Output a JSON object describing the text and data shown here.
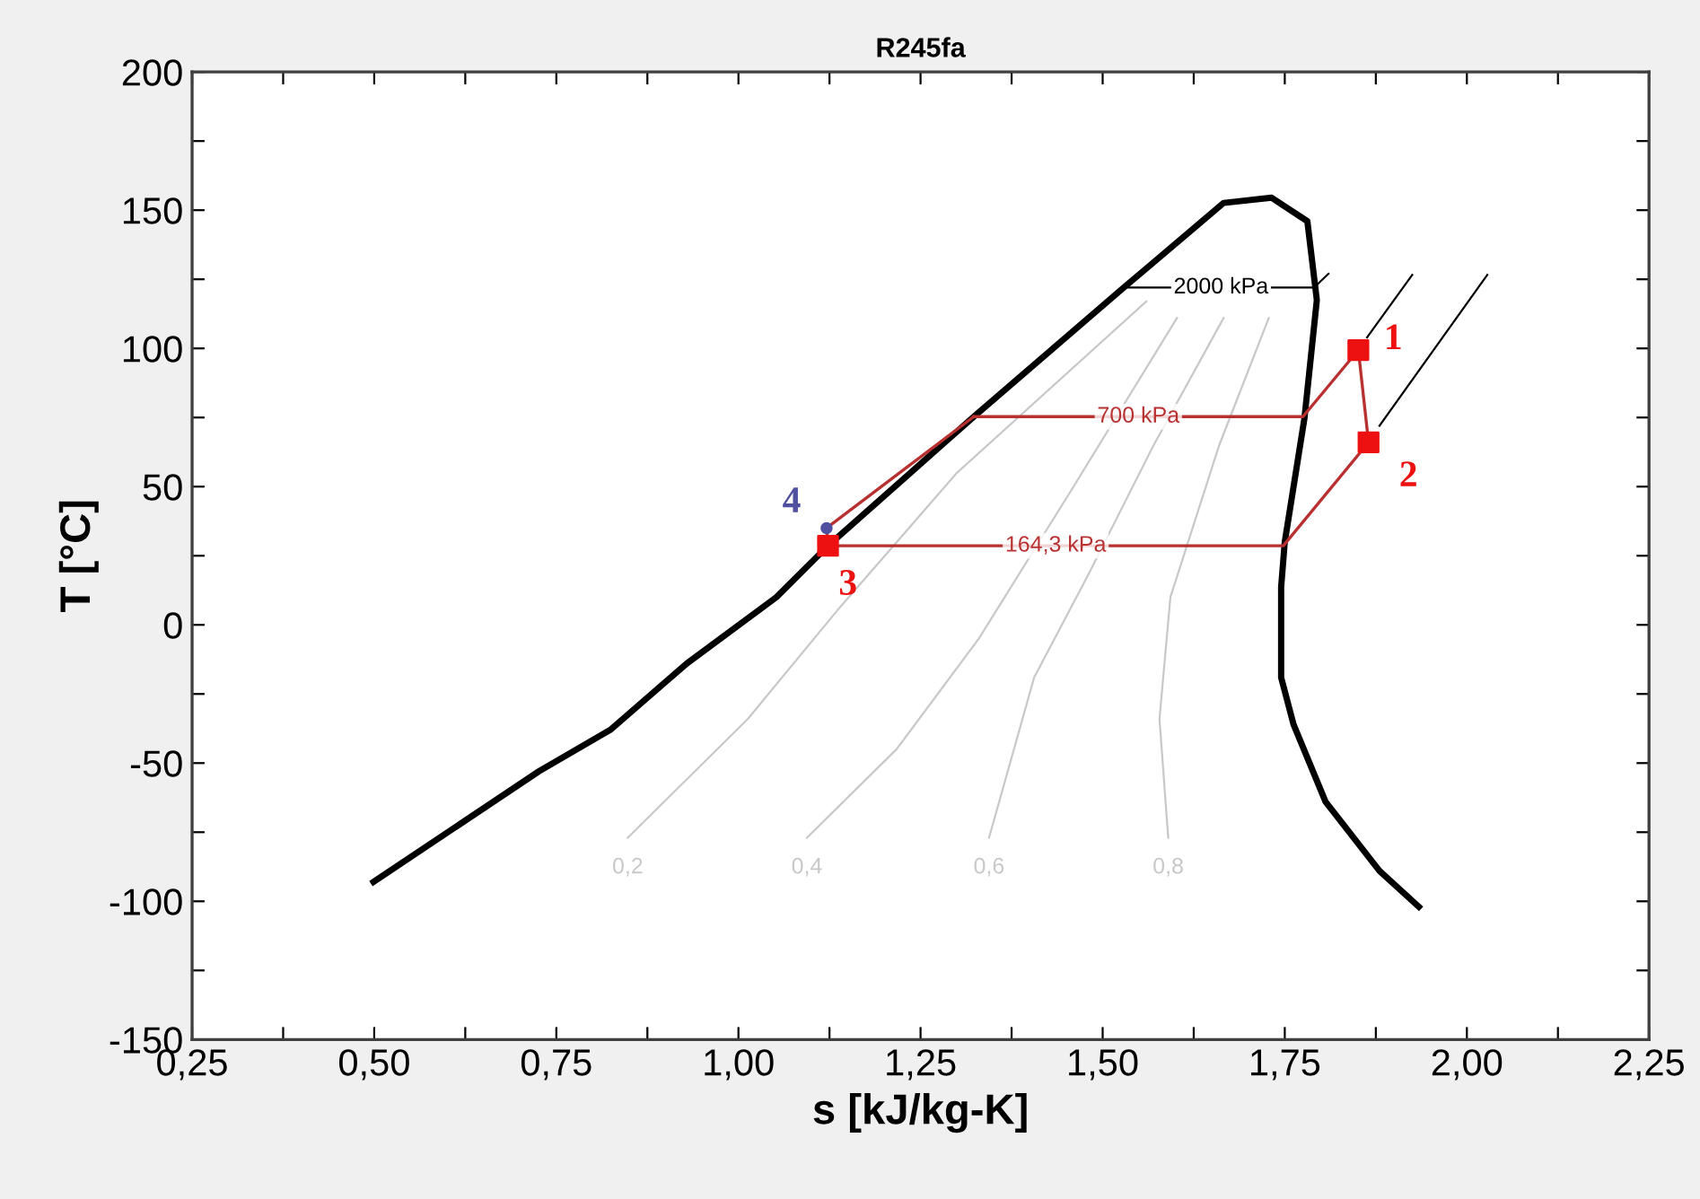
{
  "chart_data": {
    "type": "line",
    "title": "R245fa",
    "xlabel": "s [kJ/kg-K]",
    "ylabel": "T [°C]",
    "xlim": [
      0.25,
      2.25
    ],
    "ylim": [
      -150,
      200
    ],
    "xticks": [
      {
        "value": 0.25,
        "label": "0,25"
      },
      {
        "value": 0.375,
        "label": null
      },
      {
        "value": 0.5,
        "label": "0,50"
      },
      {
        "value": 0.625,
        "label": null
      },
      {
        "value": 0.75,
        "label": "0,75"
      },
      {
        "value": 0.875,
        "label": null
      },
      {
        "value": 1.0,
        "label": "1,00"
      },
      {
        "value": 1.125,
        "label": null
      },
      {
        "value": 1.25,
        "label": "1,25"
      },
      {
        "value": 1.375,
        "label": null
      },
      {
        "value": 1.5,
        "label": "1,50"
      },
      {
        "value": 1.625,
        "label": null
      },
      {
        "value": 1.75,
        "label": "1,75"
      },
      {
        "value": 1.875,
        "label": null
      },
      {
        "value": 2.0,
        "label": "2,00"
      },
      {
        "value": 2.125,
        "label": null
      },
      {
        "value": 2.25,
        "label": "2,25"
      }
    ],
    "yticks": [
      -150,
      {
        "value": -125,
        "label": null
      },
      -100,
      {
        "value": -75,
        "label": null
      },
      -50,
      {
        "value": -25,
        "label": null
      },
      0,
      {
        "value": 25,
        "label": null
      },
      50,
      {
        "value": 75,
        "label": null
      },
      100,
      {
        "value": 125,
        "label": null
      },
      150,
      {
        "value": 175,
        "label": null
      },
      200
    ],
    "grid": false,
    "marker": "none",
    "line_style": "solid",
    "series": [
      {
        "color": "#000000",
        "x": [
          0.499,
          0.726,
          0.824,
          0.929,
          1.052,
          1.123,
          1.323,
          1.529,
          1.666,
          1.732,
          1.781,
          1.794,
          1.777,
          1.75,
          1.745,
          1.745,
          1.762,
          1.806,
          1.88,
          1.934
        ],
        "values": [
          -93,
          -53,
          -38,
          -14,
          10,
          28.6,
          75.3,
          122,
          152.6,
          154.5,
          146,
          117.5,
          74.7,
          30,
          13.6,
          -19,
          -36,
          -64,
          -89,
          -102
        ]
      },
      {
        "name": "0,2",
        "color": "#c8c8c8",
        "x": [
          0.848,
          1.013,
          1.135,
          1.3,
          1.56
        ],
        "values": [
          -77,
          -34,
          5,
          55,
          117
        ]
      },
      {
        "name": "0,4",
        "color": "#c8c8c8",
        "x": [
          1.094,
          1.217,
          1.33,
          1.46,
          1.602
        ],
        "values": [
          -77,
          -45,
          -5,
          50,
          111
        ]
      },
      {
        "name": "0,6",
        "color": "#c8c8c8",
        "x": [
          1.344,
          1.406,
          1.48,
          1.57,
          1.666
        ],
        "values": [
          -77,
          -19,
          18,
          65,
          111
        ]
      },
      {
        "name": "0,8",
        "color": "#c8c8c8",
        "x": [
          1.59,
          1.578,
          1.593,
          1.66,
          1.728
        ],
        "values": [
          -77,
          -34,
          10,
          65,
          111
        ]
      },
      {
        "name": "2000 kPa",
        "color": "#000000",
        "x": [
          1.535,
          1.79,
          1.81
        ],
        "values": [
          122,
          122,
          127
        ]
      },
      {
        "color": "#000000",
        "x": [
          1.863,
          1.925
        ],
        "values": [
          104,
          126.6
        ]
      },
      {
        "color": "#000000",
        "x": [
          1.88,
          2.028
        ],
        "values": [
          72,
          126.6
        ]
      },
      {
        "name": "700 kPa",
        "color": "#b83030",
        "x": [
          1.323,
          1.775,
          1.851
        ],
        "values": [
          75.3,
          75.3,
          99.4
        ]
      },
      {
        "name": "164,3 kPa",
        "color": "#b83030",
        "x": [
          1.123,
          1.748,
          1.865
        ],
        "values": [
          28.6,
          28.6,
          66
        ]
      },
      {
        "color": "#b83030",
        "x": [
          1.123,
          1.121,
          1.323
        ],
        "values": [
          28.6,
          35,
          75.3
        ]
      },
      {
        "color": "#b83030",
        "x": [
          1.851,
          1.865
        ],
        "values": [
          99.4,
          66
        ]
      },
      {
        "type": "scatter",
        "marker": "square",
        "color": "#ee1111",
        "x": [
          1.851,
          1.865,
          1.123
        ],
        "values": [
          99.4,
          66,
          28.6
        ]
      },
      {
        "type": "scatter",
        "marker": "circle",
        "color": "#5050a0",
        "x": [
          1.121
        ],
        "values": [
          35
        ]
      }
    ],
    "annotations": [
      {
        "text": "1",
        "x": 1.851,
        "y": 99.4
      },
      {
        "text": "2",
        "x": 1.865,
        "y": 66
      },
      {
        "text": "3",
        "x": 1.123,
        "y": 28.6
      },
      {
        "text": "4",
        "x": 1.121,
        "y": 35
      }
    ]
  }
}
